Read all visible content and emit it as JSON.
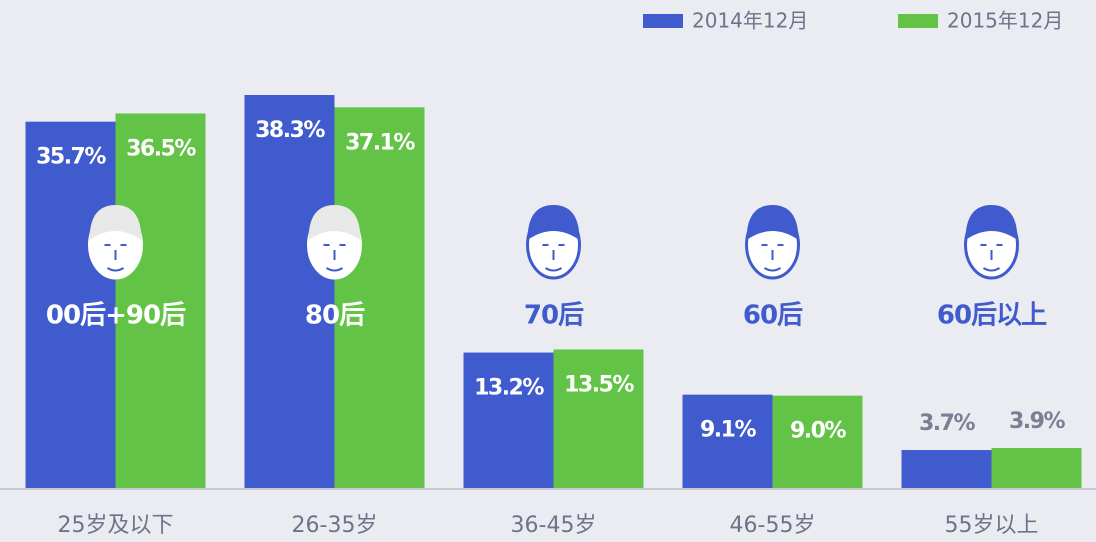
{
  "chart_data": {
    "type": "bar",
    "categories": [
      "25岁及以下",
      "26-35岁",
      "36-45岁",
      "46-55岁",
      "55岁以上"
    ],
    "annotations": [
      "00后+90后",
      "80后",
      "70后",
      "60后",
      "60后以上"
    ],
    "series": [
      {
        "name": "2014年12月",
        "color": "#3f5bcd",
        "values": [
          35.7,
          38.3,
          13.2,
          9.1,
          3.7
        ],
        "value_labels": [
          "35.7%",
          "38.3%",
          "13.2%",
          "9.1%",
          "3.7%"
        ]
      },
      {
        "name": "2015年12月",
        "color": "#62c346",
        "values": [
          36.5,
          37.1,
          13.5,
          9.0,
          3.9
        ],
        "value_labels": [
          "36.5%",
          "37.1%",
          "13.5%",
          "9.0%",
          "3.9%"
        ]
      }
    ],
    "legend": "top-right"
  }
}
